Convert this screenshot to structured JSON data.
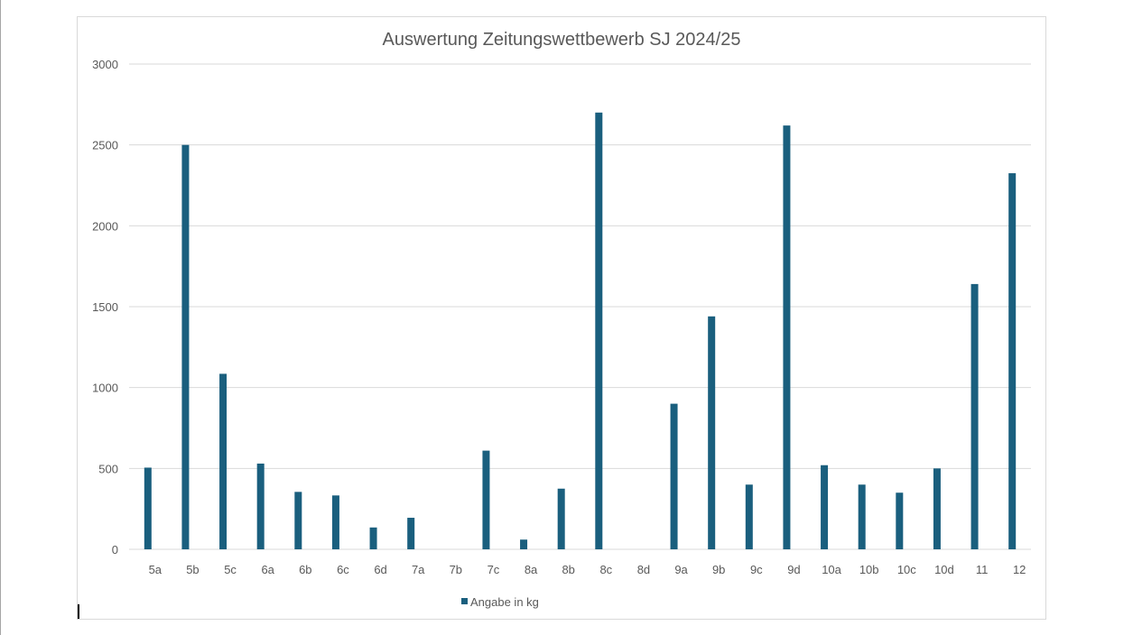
{
  "chart_data": {
    "type": "bar",
    "title": "Auswertung Zeitungswettbewerb SJ 2024/25",
    "xlabel": "",
    "ylabel": "",
    "ylim": [
      0,
      3000
    ],
    "yticks": [
      0,
      500,
      1000,
      1500,
      2000,
      2500,
      3000
    ],
    "grid": true,
    "legend_position": "bottom",
    "categories": [
      "5a",
      "5b",
      "5c",
      "6a",
      "6b",
      "6c",
      "6d",
      "7a",
      "7b",
      "7c",
      "8a",
      "8b",
      "8c",
      "8d",
      "9a",
      "9b",
      "9c",
      "9d",
      "10a",
      "10b",
      "10c",
      "10d",
      "11",
      "12"
    ],
    "series": [
      {
        "name": "Angabe in kg",
        "color": "#1a5f7e",
        "values": [
          505,
          2500,
          1085,
          530,
          355,
          333,
          135,
          195,
          0,
          610,
          60,
          375,
          2700,
          0,
          900,
          1440,
          400,
          2620,
          520,
          400,
          350,
          500,
          1640,
          2325
        ]
      }
    ]
  }
}
